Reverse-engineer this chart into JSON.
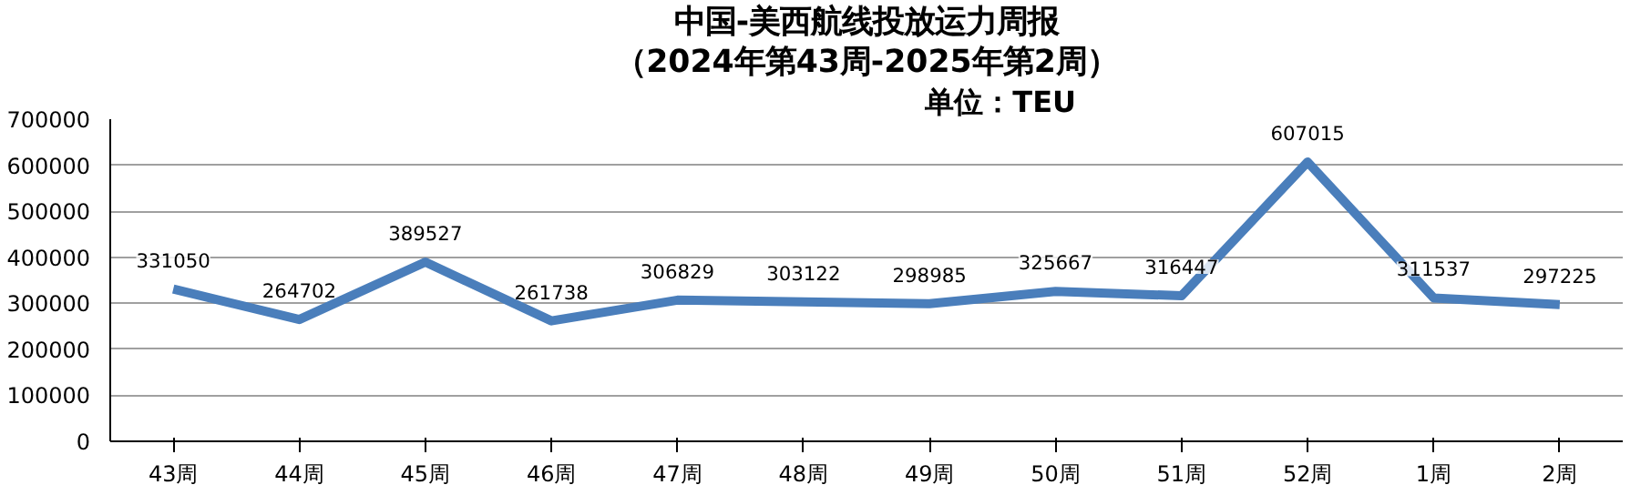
{
  "chart_data": {
    "type": "line",
    "title": "中国-美西航线投放运力周报",
    "subtitle": "（2024年第43周-2025年第2周）",
    "annotations": [
      "单位：TEU"
    ],
    "categories": [
      "43周",
      "44周",
      "45周",
      "46周",
      "47周",
      "48周",
      "49周",
      "50周",
      "51周",
      "52周",
      "1周",
      "2周"
    ],
    "series": [
      {
        "color": "#4a7ebb",
        "values": [
          331050,
          264702,
          389527,
          261738,
          306829,
          303122,
          298985,
          325667,
          316447,
          607015,
          311537,
          297225
        ]
      }
    ],
    "ylim": [
      0,
      700000
    ],
    "yticks": [
      0,
      100000,
      200000,
      300000,
      400000,
      500000,
      600000,
      700000
    ],
    "grid": "y",
    "data_labels": true,
    "marker": "none",
    "line_style": "solid"
  }
}
